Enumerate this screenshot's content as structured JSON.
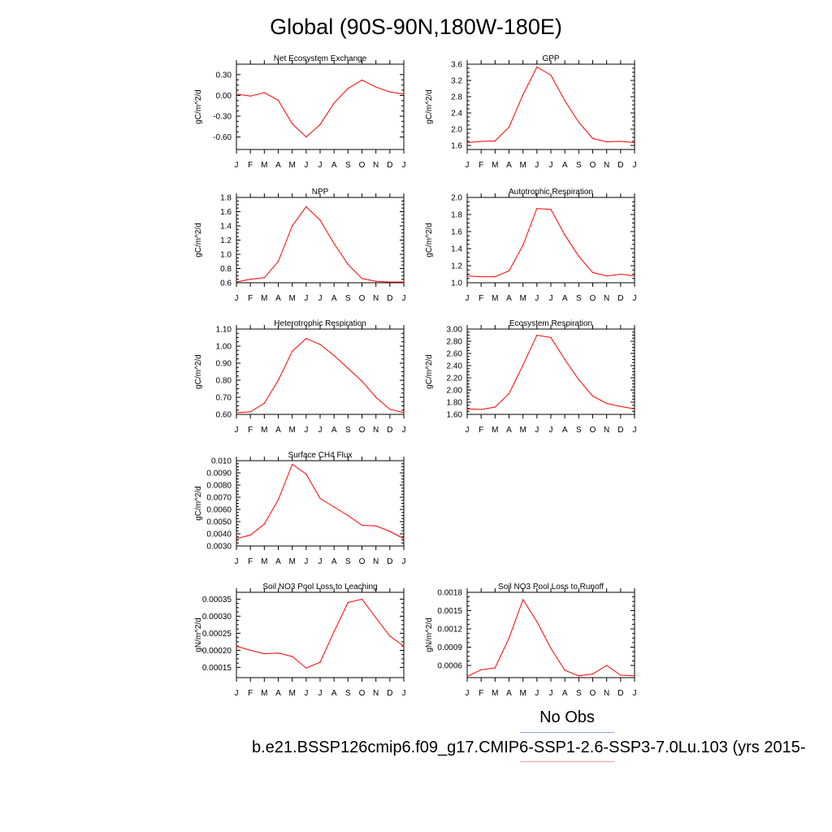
{
  "title": "Global (90S-90N,180W-180E)",
  "legend": {
    "obs_label": "No Obs",
    "case_label": "b.e21.BSSP126cmip6.f09_g17.CMIP6-SSP1-2.6-SSP3-7.0Lu.103 (yrs 2015-",
    "case_color": "#ff0000",
    "obs_color": "#9999ff"
  },
  "chart_data": [
    {
      "type": "line",
      "title": "Net Ecosystem Exchange",
      "ylabel": "gC/m^2/d",
      "categories": [
        "J",
        "F",
        "M",
        "A",
        "M",
        "J",
        "J",
        "A",
        "S",
        "O",
        "N",
        "D",
        "J"
      ],
      "values": [
        0.02,
        -0.01,
        0.04,
        -0.07,
        -0.41,
        -0.6,
        -0.42,
        -0.11,
        0.1,
        0.22,
        0.12,
        0.05,
        0.02
      ],
      "ylim": [
        -0.78,
        0.45
      ],
      "yticks": [
        -0.6,
        -0.3,
        0.0,
        0.3
      ],
      "yticklabels": [
        "-0.60",
        "-0.30",
        "0.00",
        "0.30"
      ],
      "color": "#ff0000"
    },
    {
      "type": "line",
      "title": "GPP",
      "ylabel": "gC/m^2/d",
      "categories": [
        "J",
        "F",
        "M",
        "A",
        "M",
        "J",
        "J",
        "A",
        "S",
        "O",
        "N",
        "D",
        "J"
      ],
      "values": [
        1.67,
        1.7,
        1.71,
        2.05,
        2.85,
        3.53,
        3.33,
        2.7,
        2.17,
        1.77,
        1.69,
        1.7,
        1.67
      ],
      "ylim": [
        1.5,
        3.6
      ],
      "yticks": [
        1.6,
        2.0,
        2.4,
        2.8,
        3.2,
        3.6
      ],
      "yticklabels": [
        "1.6",
        "2.0",
        "2.4",
        "2.8",
        "3.2",
        "3.6"
      ],
      "color": "#ff0000"
    },
    {
      "type": "line",
      "title": "NPP",
      "ylabel": "gC/m^2/d",
      "categories": [
        "J",
        "F",
        "M",
        "A",
        "M",
        "J",
        "J",
        "A",
        "S",
        "O",
        "N",
        "D",
        "J"
      ],
      "values": [
        0.61,
        0.65,
        0.67,
        0.9,
        1.4,
        1.67,
        1.48,
        1.15,
        0.86,
        0.66,
        0.62,
        0.61,
        0.61
      ],
      "ylim": [
        0.6,
        1.8
      ],
      "yticks": [
        0.6,
        0.8,
        1.0,
        1.2,
        1.4,
        1.6,
        1.8
      ],
      "yticklabels": [
        "0.6",
        "0.8",
        "1.0",
        "1.2",
        "1.4",
        "1.6",
        "1.8"
      ],
      "color": "#ff0000"
    },
    {
      "type": "line",
      "title": "Autotrophic Respiration",
      "ylabel": "gC/m^2/d",
      "categories": [
        "J",
        "F",
        "M",
        "A",
        "M",
        "J",
        "J",
        "A",
        "S",
        "O",
        "N",
        "D",
        "J"
      ],
      "values": [
        1.08,
        1.07,
        1.07,
        1.14,
        1.44,
        1.87,
        1.86,
        1.56,
        1.31,
        1.12,
        1.08,
        1.1,
        1.08
      ],
      "ylim": [
        1.0,
        2.0
      ],
      "yticks": [
        1.0,
        1.2,
        1.4,
        1.6,
        1.8,
        2.0
      ],
      "yticklabels": [
        "1.0",
        "1.2",
        "1.4",
        "1.6",
        "1.8",
        "2.0"
      ],
      "color": "#ff0000"
    },
    {
      "type": "line",
      "title": "Heterotrophic Respiration",
      "ylabel": "gC/m^2/d",
      "categories": [
        "J",
        "F",
        "M",
        "A",
        "M",
        "J",
        "J",
        "A",
        "S",
        "O",
        "N",
        "D",
        "J"
      ],
      "values": [
        0.61,
        0.615,
        0.665,
        0.8,
        0.97,
        1.045,
        1.01,
        0.945,
        0.87,
        0.795,
        0.7,
        0.63,
        0.61
      ],
      "ylim": [
        0.6,
        1.1
      ],
      "yticks": [
        0.6,
        0.7,
        0.8,
        0.9,
        1.0,
        1.1
      ],
      "yticklabels": [
        "0.60",
        "0.70",
        "0.80",
        "0.90",
        "1.00",
        "1.10"
      ],
      "color": "#ff0000"
    },
    {
      "type": "line",
      "title": "Ecosystem Respiration",
      "ylabel": "gC/m^2/d",
      "categories": [
        "J",
        "F",
        "M",
        "A",
        "M",
        "J",
        "J",
        "A",
        "S",
        "O",
        "N",
        "D",
        "J"
      ],
      "values": [
        1.69,
        1.68,
        1.72,
        1.94,
        2.41,
        2.9,
        2.86,
        2.5,
        2.17,
        1.9,
        1.78,
        1.73,
        1.69
      ],
      "ylim": [
        1.6,
        3.0
      ],
      "yticks": [
        1.6,
        1.8,
        2.0,
        2.2,
        2.4,
        2.6,
        2.8,
        3.0
      ],
      "yticklabels": [
        "1.60",
        "1.80",
        "2.00",
        "2.20",
        "2.40",
        "2.60",
        "2.80",
        "3.00"
      ],
      "color": "#ff0000"
    },
    {
      "type": "line",
      "title": "Surface CH4 Flux",
      "ylabel": "gC/m^2/d",
      "categories": [
        "J",
        "F",
        "M",
        "A",
        "M",
        "J",
        "J",
        "A",
        "S",
        "O",
        "N",
        "D",
        "J"
      ],
      "values": [
        0.0036,
        0.0039,
        0.0048,
        0.0068,
        0.0097,
        0.0089,
        0.0069,
        0.0062,
        0.0055,
        0.0047,
        0.00465,
        0.0042,
        0.0036
      ],
      "ylim": [
        0.003,
        0.01
      ],
      "yticks": [
        0.003,
        0.004,
        0.005,
        0.006,
        0.007,
        0.008,
        0.009,
        0.01
      ],
      "yticklabels": [
        "0.0030",
        "0.0040",
        "0.0050",
        "0.0060",
        "0.0070",
        "0.0080",
        "0.0090",
        "0.010"
      ],
      "color": "#ff0000"
    },
    {
      "type": "line",
      "title": "Soil NO3 Pool Loss to Leaching",
      "ylabel": "gN/m^2/d",
      "categories": [
        "J",
        "F",
        "M",
        "A",
        "M",
        "J",
        "J",
        "A",
        "S",
        "O",
        "N",
        "D",
        "J"
      ],
      "values": [
        0.000212,
        0.0002,
        0.00019,
        0.000192,
        0.000182,
        0.000148,
        0.000165,
        0.000255,
        0.00034,
        0.00035,
        0.000295,
        0.000242,
        0.000212
      ],
      "ylim": [
        0.00012,
        0.00037
      ],
      "yticks": [
        0.00015,
        0.0002,
        0.00025,
        0.0003,
        0.00035
      ],
      "yticklabels": [
        "0.00015",
        "0.00020",
        "0.00025",
        "0.00030",
        "0.00035"
      ],
      "color": "#ff0000"
    },
    {
      "type": "line",
      "title": "Soil NO3 Pool Loss to Runoff",
      "ylabel": "gN/m^2/d",
      "categories": [
        "J",
        "F",
        "M",
        "A",
        "M",
        "J",
        "J",
        "A",
        "S",
        "O",
        "N",
        "D",
        "J"
      ],
      "values": [
        0.00042,
        0.00053,
        0.00056,
        0.00105,
        0.00168,
        0.00132,
        0.00088,
        0.00052,
        0.00043,
        0.00046,
        0.0006,
        0.00044,
        0.00043
      ],
      "ylim": [
        0.0004,
        0.0018
      ],
      "yticks": [
        0.0006,
        0.0009,
        0.0012,
        0.0015,
        0.0018
      ],
      "yticklabels": [
        "0.0006",
        "0.0009",
        "0.0012",
        "0.0015",
        "0.0018"
      ],
      "color": "#ff0000"
    }
  ]
}
